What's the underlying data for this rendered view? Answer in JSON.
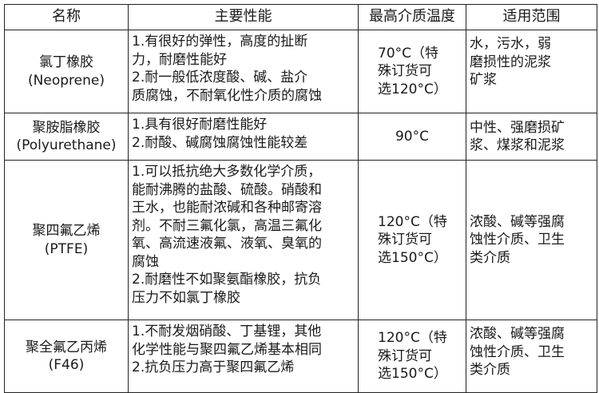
{
  "headers": [
    "名称",
    "主要性能",
    "最高介质温度",
    "适用范围"
  ],
  "rows": [
    {
      "name": "氯丁橡胶\n(Neoprene)",
      "performance": "1.有很好的弹性，高度的扯断\n力，耐磨性能好\n2.耐一般低浓度酸、碱、盐介\n质腐蚀，不耐氧化性介质的腐蚀",
      "max_temp": "70°C（特\n殊订货可\n选120°C）",
      "range": "水，污水，弱\n磨损性的泥浆\n矿浆"
    },
    {
      "name": "聚胺脂橡胶\n(Polyurethane)",
      "performance": "1.具有很好耐磨性能好\n2.耐酸、碱腐蚀腐蚀性能较差",
      "max_temp": "90°C",
      "range": "中性、强磨损矿\n浆、煤浆和泥浆"
    },
    {
      "name": "聚四氟乙烯\n(PTFE)",
      "performance": "1.可以抵抗绝大多数化学介质，\n能耐沸腾的盐酸、硫酸。硝酸和\n王水，也能耐浓碱和各种邮寄溶\n剂。不耐三氟化氯，高温三氟化\n氧、高流速液氟、液氧、臭氧的\n腐蚀\n2.耐磨性不如聚氨酯橡胶，抗负\n压力不如氯丁橡胶",
      "max_temp": "120°C（特\n殊订货可\n选150°C）",
      "range": "浓酸、碱等强腐\n蚀性介质、卫生\n类介质"
    },
    {
      "name": "聚全氟乙丙烯\n(F46)",
      "performance": "1.不耐发烟硝酸、丁基锂，其他\n化学性能与聚四氟乙烯基本相同\n2.抗负压力高于聚四氟乙烯",
      "max_temp": "120°C（特\n殊订货可\n选150°C）",
      "range": "浓酸、碱等强腐\n蚀性介质、卫生\n类介质"
    }
  ]
}
